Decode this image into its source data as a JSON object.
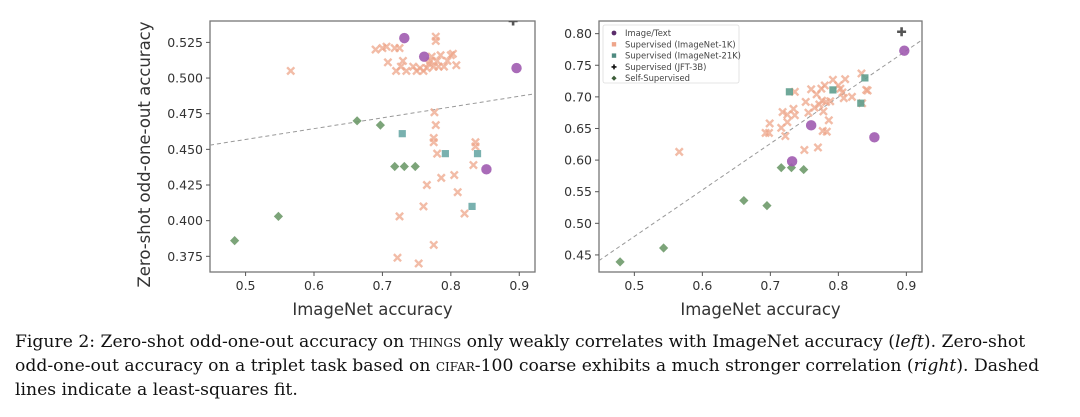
{
  "chart_data": [
    {
      "type": "scatter",
      "panel": "left",
      "title": "",
      "xlabel": "ImageNet accuracy",
      "ylabel": "Zero-shot odd-one-out accuracy",
      "xlim": [
        0.448,
        0.923
      ],
      "ylim": [
        0.364,
        0.54
      ],
      "xticks": [
        0.5,
        0.6,
        0.7,
        0.8,
        0.9
      ],
      "xtick_labels": [
        "0.5",
        "0.6",
        "0.7",
        "0.8",
        "0.9"
      ],
      "yticks": [
        0.375,
        0.4,
        0.425,
        0.45,
        0.475,
        0.5,
        0.525
      ],
      "ytick_labels": [
        "0.375",
        "0.400",
        "0.425",
        "0.450",
        "0.475",
        "0.500",
        "0.525"
      ],
      "grid": false,
      "fit_line": {
        "style": "dashed",
        "x": [
          0.448,
          0.923
        ],
        "y": [
          0.453,
          0.489
        ]
      },
      "series": [
        {
          "name": "Image/Text",
          "marker": "circle",
          "color": "#a05bb0",
          "points": [
            [
              0.732,
              0.528
            ],
            [
              0.761,
              0.515
            ],
            [
              0.896,
              0.507
            ],
            [
              0.852,
              0.436
            ]
          ]
        },
        {
          "name": "Supervised (ImageNet-1K)",
          "marker": "x",
          "color": "#eea58a",
          "points": [
            [
              0.566,
              0.505
            ],
            [
              0.7,
              0.521
            ],
            [
              0.706,
              0.522
            ],
            [
              0.708,
              0.511
            ],
            [
              0.69,
              0.52
            ],
            [
              0.718,
              0.521
            ],
            [
              0.725,
              0.521
            ],
            [
              0.72,
              0.505
            ],
            [
              0.727,
              0.508
            ],
            [
              0.73,
              0.512
            ],
            [
              0.735,
              0.505
            ],
            [
              0.745,
              0.508
            ],
            [
              0.75,
              0.505
            ],
            [
              0.755,
              0.507
            ],
            [
              0.76,
              0.505
            ],
            [
              0.765,
              0.507
            ],
            [
              0.768,
              0.51
            ],
            [
              0.77,
              0.512
            ],
            [
              0.772,
              0.515
            ],
            [
              0.775,
              0.508
            ],
            [
              0.778,
              0.526
            ],
            [
              0.778,
              0.529
            ],
            [
              0.78,
              0.512
            ],
            [
              0.782,
              0.508
            ],
            [
              0.785,
              0.516
            ],
            [
              0.79,
              0.508
            ],
            [
              0.795,
              0.512
            ],
            [
              0.8,
              0.516
            ],
            [
              0.803,
              0.517
            ],
            [
              0.808,
              0.509
            ],
            [
              0.776,
              0.476
            ],
            [
              0.778,
              0.467
            ],
            [
              0.775,
              0.458
            ],
            [
              0.775,
              0.455
            ],
            [
              0.78,
              0.447
            ],
            [
              0.836,
              0.455
            ],
            [
              0.836,
              0.452
            ],
            [
              0.833,
              0.439
            ],
            [
              0.765,
              0.425
            ],
            [
              0.786,
              0.43
            ],
            [
              0.805,
              0.432
            ],
            [
              0.81,
              0.42
            ],
            [
              0.76,
              0.41
            ],
            [
              0.82,
              0.405
            ],
            [
              0.725,
              0.403
            ],
            [
              0.775,
              0.383
            ],
            [
              0.722,
              0.374
            ],
            [
              0.753,
              0.37
            ]
          ]
        },
        {
          "name": "Supervised (ImageNet-21K)",
          "marker": "square",
          "color": "#6aa9a6",
          "points": [
            [
              0.729,
              0.461
            ],
            [
              0.792,
              0.447
            ],
            [
              0.839,
              0.447
            ],
            [
              0.831,
              0.41
            ]
          ]
        },
        {
          "name": "Supervised (JFT-3B)",
          "marker": "plus",
          "color": "#555555",
          "points": [
            [
              0.891,
              0.54
            ]
          ]
        },
        {
          "name": "Self-Supervised",
          "marker": "diamond",
          "color": "#6e9a6a",
          "points": [
            [
              0.484,
              0.386
            ],
            [
              0.548,
              0.403
            ],
            [
              0.663,
              0.47
            ],
            [
              0.697,
              0.467
            ],
            [
              0.718,
              0.438
            ],
            [
              0.732,
              0.438
            ],
            [
              0.748,
              0.438
            ]
          ]
        }
      ]
    },
    {
      "type": "scatter",
      "panel": "right",
      "title": "",
      "xlabel": "ImageNet accuracy",
      "ylabel": "",
      "xlim": [
        0.448,
        0.923
      ],
      "ylim": [
        0.423,
        0.82
      ],
      "xticks": [
        0.5,
        0.6,
        0.7,
        0.8,
        0.9
      ],
      "xtick_labels": [
        "0.5",
        "0.6",
        "0.7",
        "0.8",
        "0.9"
      ],
      "yticks": [
        0.45,
        0.5,
        0.55,
        0.6,
        0.65,
        0.7,
        0.75,
        0.8
      ],
      "ytick_labels": [
        "0.45",
        "0.50",
        "0.55",
        "0.60",
        "0.65",
        "0.70",
        "0.75",
        "0.80"
      ],
      "grid": false,
      "legend_position": "top-left",
      "fit_line": {
        "style": "dashed",
        "x": [
          0.448,
          0.923
        ],
        "y": [
          0.441,
          0.79
        ]
      },
      "series": [
        {
          "name": "Image/Text",
          "marker": "circle",
          "color": "#a05bb0",
          "points": [
            [
              0.897,
              0.773
            ],
            [
              0.76,
              0.655
            ],
            [
              0.853,
              0.636
            ],
            [
              0.732,
              0.598
            ]
          ]
        },
        {
          "name": "Supervised (ImageNet-1K)",
          "marker": "x",
          "color": "#eea58a",
          "points": [
            [
              0.566,
              0.613
            ],
            [
              0.693,
              0.643
            ],
            [
              0.698,
              0.643
            ],
            [
              0.699,
              0.658
            ],
            [
              0.716,
              0.651
            ],
            [
              0.718,
              0.676
            ],
            [
              0.722,
              0.638
            ],
            [
              0.725,
              0.672
            ],
            [
              0.725,
              0.66
            ],
            [
              0.734,
              0.681
            ],
            [
              0.736,
              0.671
            ],
            [
              0.736,
              0.708
            ],
            [
              0.75,
              0.616
            ],
            [
              0.752,
              0.692
            ],
            [
              0.756,
              0.675
            ],
            [
              0.76,
              0.712
            ],
            [
              0.765,
              0.683
            ],
            [
              0.768,
              0.704
            ],
            [
              0.77,
              0.62
            ],
            [
              0.772,
              0.688
            ],
            [
              0.775,
              0.713
            ],
            [
              0.776,
              0.694
            ],
            [
              0.777,
              0.646
            ],
            [
              0.778,
              0.677
            ],
            [
              0.78,
              0.718
            ],
            [
              0.782,
              0.692
            ],
            [
              0.783,
              0.645
            ],
            [
              0.786,
              0.663
            ],
            [
              0.788,
              0.693
            ],
            [
              0.792,
              0.727
            ],
            [
              0.8,
              0.718
            ],
            [
              0.803,
              0.713
            ],
            [
              0.806,
              0.707
            ],
            [
              0.808,
              0.698
            ],
            [
              0.81,
              0.728
            ],
            [
              0.82,
              0.7
            ],
            [
              0.834,
              0.737
            ],
            [
              0.841,
              0.711
            ],
            [
              0.843,
              0.71
            ],
            [
              0.835,
              0.69
            ]
          ]
        },
        {
          "name": "Supervised (ImageNet-21K)",
          "marker": "square",
          "color": "#5f9e8e",
          "points": [
            [
              0.728,
              0.708
            ],
            [
              0.792,
              0.711
            ],
            [
              0.839,
              0.73
            ],
            [
              0.833,
              0.69
            ]
          ]
        },
        {
          "name": "Supervised (JFT-3B)",
          "marker": "plus",
          "color": "#555555",
          "points": [
            [
              0.893,
              0.803
            ]
          ]
        },
        {
          "name": "Self-Supervised",
          "marker": "diamond",
          "color": "#6e9a6a",
          "points": [
            [
              0.479,
              0.439
            ],
            [
              0.543,
              0.461
            ],
            [
              0.661,
              0.536
            ],
            [
              0.695,
              0.528
            ],
            [
              0.716,
              0.588
            ],
            [
              0.731,
              0.588
            ],
            [
              0.749,
              0.585
            ]
          ]
        }
      ]
    }
  ],
  "legend": {
    "items": [
      {
        "label": "Image/Text",
        "marker": "circle",
        "color": "#5b2d6b"
      },
      {
        "label": "Supervised (ImageNet-1K)",
        "marker": "square",
        "color": "#eea58a"
      },
      {
        "label": "Supervised (ImageNet-21K)",
        "marker": "square",
        "color": "#4f8a80"
      },
      {
        "label": "Supervised (JFT-3B)",
        "marker": "plus",
        "color": "#111111"
      },
      {
        "label": "Self-Supervised",
        "marker": "diamond",
        "color": "#3e5e3a"
      }
    ]
  },
  "caption": {
    "l1a": "Figure 2: Zero-shot odd-one-out accuracy on ",
    "l1b": "things",
    "l1c": " only weakly correlates with ImageNet accuracy (",
    "l1d": "left",
    "l1e": "). Zero-shot odd-one-out accuracy on a triplet task based on ",
    "l1f": "cifar",
    "l1g": "-100 coarse exhibits a much stronger correlation (",
    "l1h": "right",
    "l1i": "). Dashed lines indicate a least-squares fit."
  }
}
